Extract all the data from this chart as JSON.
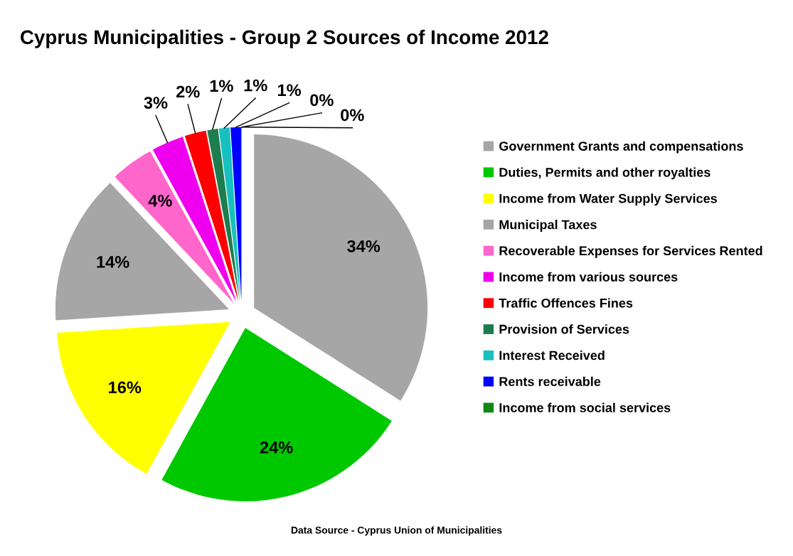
{
  "chart_data": {
    "type": "pie",
    "title": "Cyprus Municipalities - Group 2 Sources of Income 2012",
    "categories": [
      "Government Grants and compensations",
      "Duties, Permits and other royalties",
      "Income from Water Supply Services",
      "Municipal Taxes",
      "Recoverable Expenses for Services Rented",
      "Income from various sources",
      "Traffic Offences Fines",
      "Provision of Services",
      "Interest Received",
      "Rents receivable",
      null,
      "Income from social services"
    ],
    "values": [
      34,
      24,
      16,
      14,
      4,
      3,
      2,
      1,
      1,
      1,
      0,
      0
    ],
    "colors": [
      "#a6a6a6",
      "#00c800",
      "#ffff00",
      "#a6a6a6",
      "#ff66cc",
      "#ee00ee",
      "#ff0000",
      "#1e7d4e",
      "#17c0c0",
      "#0000ff",
      "#ffffff",
      "#118811"
    ],
    "value_labels": [
      "34%",
      "24%",
      "16%",
      "14%",
      "4%",
      "3%",
      "2%",
      "1%",
      "1%",
      "1%",
      "0%",
      "0%"
    ],
    "legend": "right",
    "annotations": [
      "Data Source - Cyprus Union of Municipalities"
    ]
  }
}
